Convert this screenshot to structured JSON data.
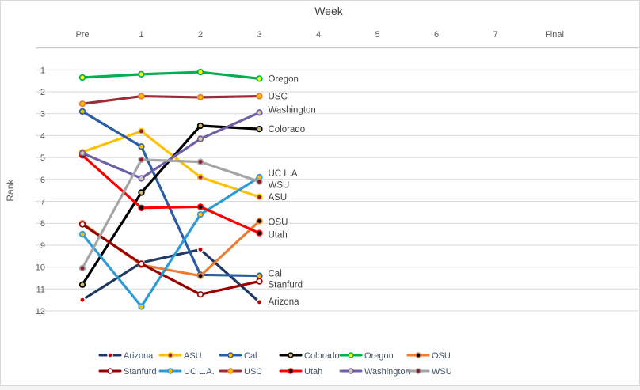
{
  "window": {
    "background": "#FFFFFF",
    "border_color": "#D9D9D9"
  },
  "chart_data": {
    "type": "line",
    "title": "Week",
    "ylabel": "Rank",
    "x_ticks": [
      "Pre",
      "1",
      "2",
      "3",
      "4",
      "5",
      "6",
      "7",
      "Final"
    ],
    "y_ticks": [
      "1",
      "2",
      "3",
      "4",
      "5",
      "6",
      "7",
      "8",
      "9",
      "10",
      "11",
      "12"
    ],
    "ylim": [
      1,
      12
    ],
    "y_axis_reversed": true,
    "grid": true,
    "legend_position": "bottom",
    "x_values_with_data": [
      "Pre",
      "1",
      "2",
      "3"
    ],
    "colors": {
      "gridline": "#D9D9D9",
      "axis_line": "#BFBFBF",
      "tick_text": "#595959",
      "title_text": "#404040",
      "data_label_text": "#404040",
      "legend_text": "#44546A"
    },
    "series": [
      {
        "name": "Arizona",
        "line_color": "#1F3864",
        "marker_fill": "#C00000",
        "marker_stroke": "#FFFFFF",
        "values": [
          11.5,
          9.8,
          9.2,
          11.6
        ],
        "label_dy": -1
      },
      {
        "name": "ASU",
        "line_color": "#FFC000",
        "marker_fill": "#8C1D40",
        "marker_stroke": "#FFC000",
        "values": [
          4.75,
          3.8,
          5.9,
          6.8
        ],
        "label_dy": 0
      },
      {
        "name": "Cal",
        "line_color": "#2A5CAA",
        "marker_fill": "#FFC000",
        "marker_stroke": "#2A5CAA",
        "values": [
          2.9,
          4.5,
          10.35,
          10.4
        ],
        "label_dy": -3
      },
      {
        "name": "Colorado",
        "line_color": "#000000",
        "marker_fill": "#CFB87C",
        "marker_stroke": "#000000",
        "values": [
          10.8,
          6.6,
          3.55,
          3.7
        ],
        "label_dy": 0
      },
      {
        "name": "Oregon",
        "line_color": "#00B050",
        "marker_fill": "#FFFF00",
        "marker_stroke": "#00B050",
        "values": [
          1.35,
          1.2,
          1.1,
          1.4
        ],
        "label_dy": 0
      },
      {
        "name": "OSU",
        "line_color": "#ED7D31",
        "marker_fill": "#000000",
        "marker_stroke": "#ED7D31",
        "values": [
          8.0,
          9.9,
          10.4,
          7.9
        ],
        "label_dy": 1
      },
      {
        "name": "Stanfurd",
        "line_color": "#990000",
        "marker_fill": "#FFFFFF",
        "marker_stroke": "#990000",
        "values": [
          8.05,
          9.85,
          11.25,
          10.65
        ],
        "label_dy": 4
      },
      {
        "name": "UC L.A.",
        "line_color": "#2D9BD8",
        "marker_fill": "#FFC000",
        "marker_stroke": "#2D9BD8",
        "values": [
          8.5,
          11.8,
          7.6,
          5.9
        ],
        "label_dy": -5
      },
      {
        "name": "USC",
        "line_color": "#9E2B35",
        "marker_fill": "#FFC000",
        "marker_stroke": "#ED7D31",
        "values": [
          2.55,
          2.2,
          2.25,
          2.2
        ],
        "label_dy": 0
      },
      {
        "name": "Utah",
        "line_color": "#FF0000",
        "marker_fill": "#000000",
        "marker_stroke": "#FF0000",
        "values": [
          4.9,
          7.3,
          7.25,
          8.45
        ],
        "label_dy": 2
      },
      {
        "name": "Washington",
        "line_color": "#6F5FA7",
        "marker_fill": "#D9C9A3",
        "marker_stroke": "#6F5FA7",
        "values": [
          4.8,
          5.95,
          4.15,
          2.95
        ],
        "label_dy": -4
      },
      {
        "name": "WSU",
        "line_color": "#A5A5A5",
        "marker_fill": "#8C1D2F",
        "marker_stroke": "#A5A5A5",
        "values": [
          10.05,
          5.1,
          5.2,
          6.1
        ],
        "label_dy": 4
      }
    ],
    "legend_rows": [
      [
        "Arizona",
        "ASU",
        "Cal",
        "Colorado",
        "Oregon",
        "OSU"
      ],
      [
        "Stanfurd",
        "UC L.A.",
        "USC",
        "Utah",
        "Washington",
        "WSU"
      ]
    ]
  }
}
